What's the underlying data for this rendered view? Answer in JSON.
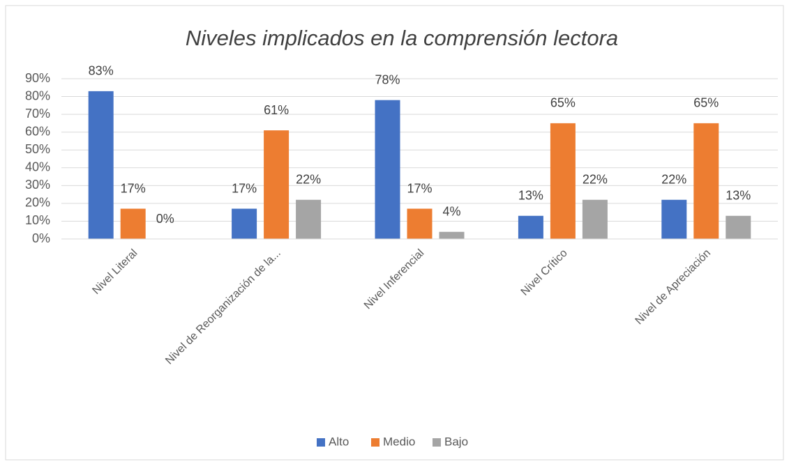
{
  "chart_data": {
    "type": "bar",
    "title": "Niveles implicados en la comprensión lectora",
    "categories": [
      "Nivel Literal",
      "Nivel de Reorganización de la...",
      "Nivel Inferencial",
      "Nivel Crítico",
      "Nivel de Apreciación"
    ],
    "series": [
      {
        "name": "Alto",
        "color": "#4472c4",
        "values": [
          83,
          17,
          78,
          13,
          22
        ],
        "value_labels": [
          "83%",
          "17%",
          "78%",
          "13%",
          "22%"
        ]
      },
      {
        "name": "Medio",
        "color": "#ed7d31",
        "values": [
          17,
          61,
          17,
          65,
          65
        ],
        "value_labels": [
          "17%",
          "61%",
          "17%",
          "65%",
          "65%"
        ]
      },
      {
        "name": "Bajo",
        "color": "#a5a5a5",
        "values": [
          0,
          22,
          4,
          22,
          13
        ],
        "value_labels": [
          "0%",
          "22%",
          "4%",
          "22%",
          "13%"
        ]
      }
    ],
    "ylim": [
      0,
      90
    ],
    "yticks": [
      {
        "value": 0,
        "label": "0%"
      },
      {
        "value": 10,
        "label": "10%"
      },
      {
        "value": 20,
        "label": "20%"
      },
      {
        "value": 30,
        "label": "30%"
      },
      {
        "value": 40,
        "label": "40%"
      },
      {
        "value": 50,
        "label": "50%"
      },
      {
        "value": 60,
        "label": "60%"
      },
      {
        "value": 70,
        "label": "70%"
      },
      {
        "value": 80,
        "label": "80%"
      },
      {
        "value": 90,
        "label": "90%"
      }
    ],
    "grid": true,
    "legend": "bottom"
  }
}
